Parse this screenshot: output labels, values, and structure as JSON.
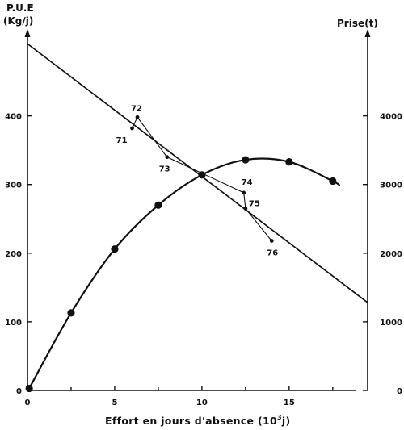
{
  "chart_data": {
    "type": "line",
    "y_left_label_line1": "P.U.E",
    "y_left_label_line2": "(Kg/j)",
    "y_right_label": "Prise(t)",
    "xlabel_main": "Effort en jours d'absence (10",
    "xlabel_sup": "3",
    "xlabel_end": "j)",
    "xlim": [
      0,
      19.5
    ],
    "ylim_left": [
      0,
      510
    ],
    "ylim_right": [
      0,
      5100
    ],
    "x_ticks": [
      0,
      5,
      10,
      15
    ],
    "x_minor_ticks": [
      2.5,
      7.5,
      12.5,
      17.5
    ],
    "y_left_ticks": [
      0,
      100,
      200,
      300,
      400
    ],
    "y_right_ticks": [
      0,
      1000,
      2000,
      3000,
      4000
    ],
    "series": [
      {
        "axis": "left",
        "style": "straight-line",
        "x": [
          0,
          19.5
        ],
        "y": [
          505,
          128
        ]
      },
      {
        "axis": "right",
        "style": "curve-with-dots",
        "x": [
          0.1,
          2.5,
          5,
          7.5,
          10,
          12.5,
          15,
          17.5,
          17.9
        ],
        "y": [
          30,
          1130,
          2060,
          2700,
          3140,
          3360,
          3330,
          3050,
          2980
        ],
        "markers": [
          true,
          true,
          true,
          true,
          true,
          true,
          true,
          true,
          false
        ]
      },
      {
        "axis": "left",
        "style": "observed-path",
        "points": [
          {
            "x": 6.0,
            "y": 382,
            "label": "71"
          },
          {
            "x": 6.3,
            "y": 398,
            "label": "72"
          },
          {
            "x": 8.0,
            "y": 340,
            "label": "73"
          },
          {
            "x": 12.4,
            "y": 288,
            "label": "74"
          },
          {
            "x": 12.5,
            "y": 265,
            "label": "75"
          },
          {
            "x": 14.0,
            "y": 218,
            "label": "76"
          }
        ]
      }
    ]
  }
}
